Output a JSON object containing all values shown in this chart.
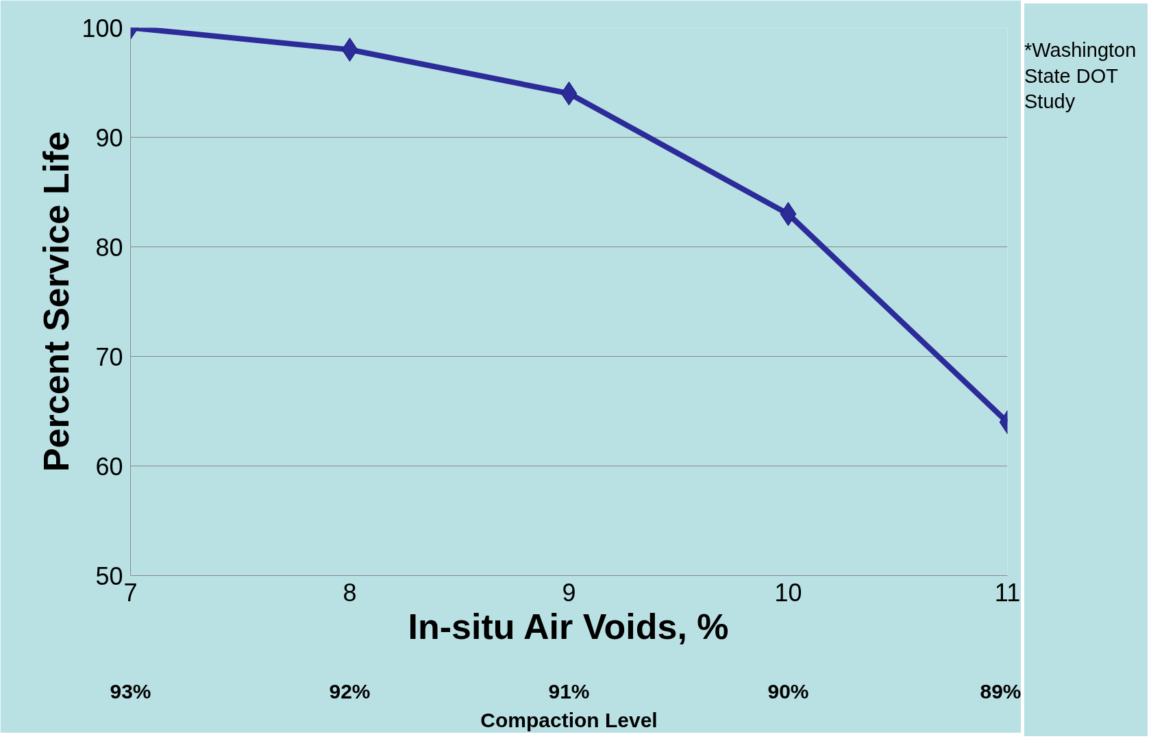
{
  "chart_data": {
    "type": "line",
    "xlabel": "In-situ Air Voids, %",
    "ylabel": "Percent Service Life",
    "x2label": "Compaction Level",
    "x": [
      7,
      8,
      9,
      10,
      11
    ],
    "series": [
      {
        "color": "#2b2b99",
        "values": [
          100,
          98,
          94,
          83,
          64
        ]
      }
    ],
    "xlim": [
      7,
      11
    ],
    "xticks": [
      7,
      8,
      9,
      10,
      11
    ],
    "ylim": [
      50,
      100
    ],
    "yticks": [
      50,
      60,
      70,
      80,
      90,
      100
    ],
    "x2lim": [
      93,
      89
    ],
    "x2ticks": [
      {
        "value": 93,
        "label": "93%"
      },
      {
        "value": 92,
        "label": "92%"
      },
      {
        "value": 91,
        "label": "91%"
      },
      {
        "value": 90,
        "label": "90%"
      },
      {
        "value": 89,
        "label": "89%"
      }
    ],
    "annotations": [
      "*Washington State DOT Study"
    ],
    "grid": "y",
    "marker": "diamond",
    "line_style": "solid"
  }
}
